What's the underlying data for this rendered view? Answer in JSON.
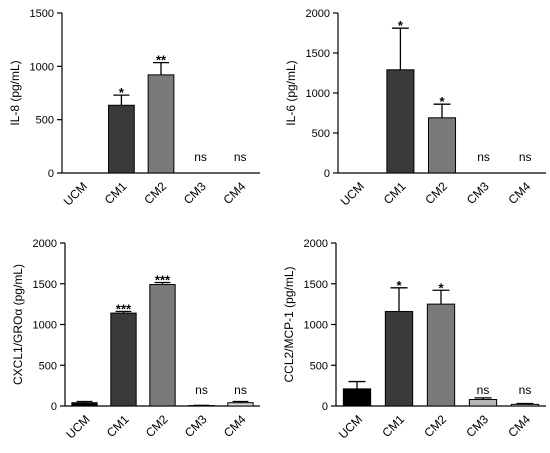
{
  "chart_data": [
    {
      "type": "bar",
      "ylabel": "IL-8 (pg/mL)",
      "categories": [
        "UCM",
        "CM1",
        "CM2",
        "CM3",
        "CM4"
      ],
      "values": [
        0,
        635,
        920,
        0,
        0
      ],
      "errors": [
        0,
        95,
        115,
        0,
        0
      ],
      "significance": [
        "",
        "*",
        "**",
        "ns",
        "ns"
      ],
      "ylim": [
        0,
        1500
      ],
      "yticks": [
        0,
        500,
        1000,
        1500
      ],
      "bar_colors": [
        "#000000",
        "#3a3a3a",
        "#7a7a7a",
        "#b4b4b4",
        "#d6d6d6"
      ]
    },
    {
      "type": "bar",
      "ylabel": "IL-6 (pg/mL)",
      "categories": [
        "UCM",
        "CM1",
        "CM2",
        "CM3",
        "CM4"
      ],
      "values": [
        0,
        1290,
        690,
        0,
        0
      ],
      "errors": [
        0,
        520,
        170,
        0,
        0
      ],
      "significance": [
        "",
        "*",
        "*",
        "ns",
        "ns"
      ],
      "ylim": [
        0,
        2000
      ],
      "yticks": [
        0,
        500,
        1000,
        1500,
        2000
      ],
      "bar_colors": [
        "#000000",
        "#3a3a3a",
        "#7a7a7a",
        "#b4b4b4",
        "#d6d6d6"
      ]
    },
    {
      "type": "bar",
      "ylabel": "CXCL1/GROα (pg/mL)",
      "categories": [
        "UCM",
        "CM1",
        "CM2",
        "CM3",
        "CM4"
      ],
      "values": [
        40,
        1140,
        1490,
        5,
        40
      ],
      "errors": [
        15,
        20,
        25,
        3,
        15
      ],
      "significance": [
        "",
        "***",
        "***",
        "ns",
        "ns"
      ],
      "ylim": [
        0,
        2000
      ],
      "yticks": [
        0,
        500,
        1000,
        1500,
        2000
      ],
      "bar_colors": [
        "#000000",
        "#3a3a3a",
        "#7a7a7a",
        "#b4b4b4",
        "#d6d6d6"
      ]
    },
    {
      "type": "bar",
      "ylabel": "CCL2/MCP-1 (pg/mL)",
      "categories": [
        "UCM",
        "CM1",
        "CM2",
        "CM3",
        "CM4"
      ],
      "values": [
        210,
        1160,
        1250,
        80,
        20
      ],
      "errors": [
        90,
        290,
        170,
        20,
        10
      ],
      "significance": [
        "",
        "*",
        "*",
        "ns",
        "ns"
      ],
      "ylim": [
        0,
        2000
      ],
      "yticks": [
        0,
        500,
        1000,
        1500,
        2000
      ],
      "bar_colors": [
        "#000000",
        "#3a3a3a",
        "#7a7a7a",
        "#b4b4b4",
        "#d6d6d6"
      ]
    }
  ]
}
